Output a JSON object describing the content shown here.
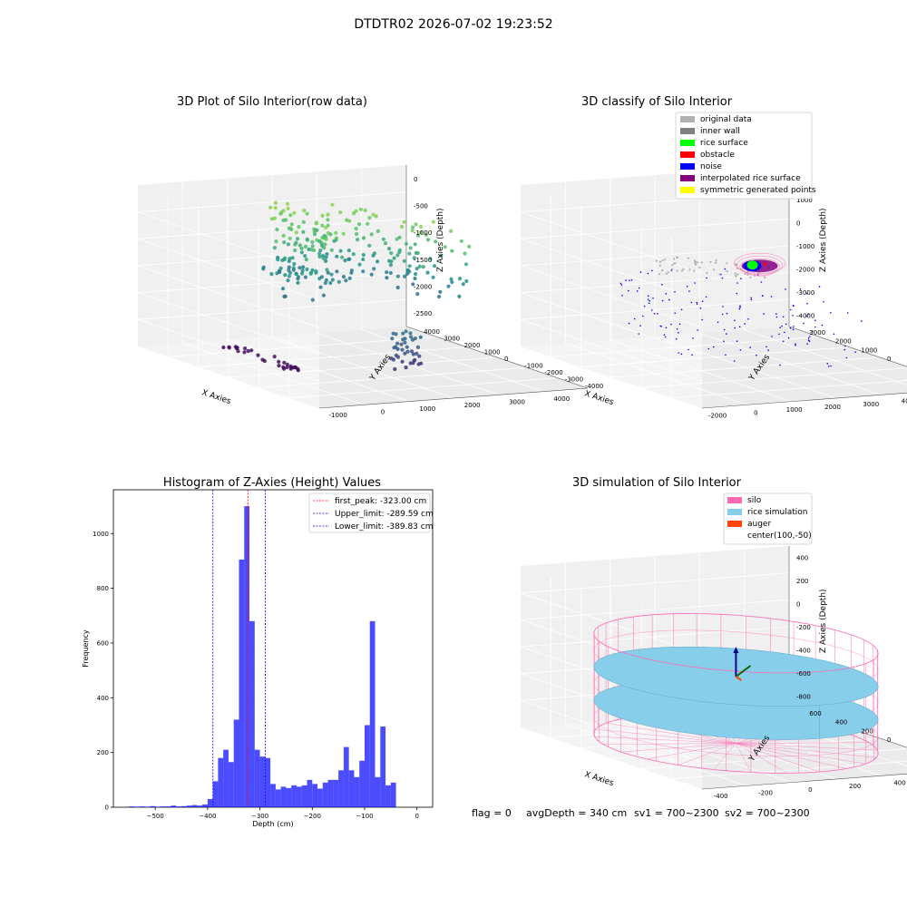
{
  "figure": {
    "suptitle": "DTDTR02 2026-07-02 19:23:52"
  },
  "footer": {
    "flag": "flag = 0",
    "avg_depth": "avgDepth = 340 cm",
    "sv1": "sv1 = 700~2300",
    "sv2": "sv2 = 700~2300"
  },
  "colors": {
    "original_data": "#b0b0b0",
    "inner_wall": "#808080",
    "rice_surface": "#00ff00",
    "obstacle": "#ff0000",
    "noise": "#0000ff",
    "interpolated_rice_surface": "#800080",
    "symmetric_generated_points": "#ffff00",
    "silo": "#ff69b4",
    "rice_simulation": "#87ceeb",
    "auger": "#ff4500",
    "hist_bars": "#0000ff",
    "first_peak_line": "#ff0000",
    "limit_lines": "#0000ff"
  },
  "chart_data": [
    {
      "type": "scatter",
      "title": "3D Plot of Silo Interior(row data)",
      "xlabel": "X Axies",
      "ylabel": "Y Axies",
      "zlabel": "Z Axies (Depth)",
      "x_ticks": [
        "-1000",
        "0",
        "1000",
        "2000",
        "3000",
        "4000"
      ],
      "y_ticks": [
        "-4000",
        "-3000",
        "-2000",
        "-1000",
        "0",
        "1000",
        "2000",
        "3000",
        "4000"
      ],
      "z_ticks": [
        "-2500",
        "-2000",
        "-1500",
        "-1000",
        "-500",
        "0"
      ],
      "xlim": [
        -1500,
        4500
      ],
      "ylim": [
        -4000,
        4500
      ],
      "zlim": [
        -2800,
        200
      ],
      "colormap": "viridis"
    },
    {
      "type": "scatter",
      "title": "3D classify of Silo Interior",
      "xlabel": "X Axies",
      "ylabel": "Y Axies",
      "zlabel": "Z Axies (Depth)",
      "x_ticks": [
        "-2000",
        "0",
        "1000",
        "2000",
        "3000",
        "4000",
        "5000"
      ],
      "y_ticks": [
        "-3000",
        "-2000",
        "-1000",
        "0",
        "1000",
        "2000",
        "3000"
      ],
      "z_ticks": [
        "-4000",
        "-3000",
        "-2000",
        "-1000",
        "0",
        "1000",
        "2000"
      ],
      "xlim": [
        -2500,
        5500
      ],
      "ylim": [
        -3500,
        3500
      ],
      "zlim": [
        -4700,
        2500
      ],
      "legend_position": "top-right",
      "legend": [
        "original data",
        "inner wall",
        "rice surface",
        "obstacle",
        "noise",
        "interpolated rice surface",
        "symmetric generated points"
      ]
    },
    {
      "type": "bar",
      "title": "Histogram of Z-Axies (Height) Values",
      "xlabel": "Depth (cm)",
      "ylabel": "Frequency",
      "xlim": [
        -580,
        30
      ],
      "ylim": [
        0,
        1160
      ],
      "x_ticks": [
        -500,
        -400,
        -300,
        -200,
        -100,
        0
      ],
      "y_ticks": [
        0,
        200,
        400,
        600,
        800,
        1000
      ],
      "bin_width": 10,
      "bins": [
        [
          -550,
          3
        ],
        [
          -540,
          2
        ],
        [
          -530,
          3
        ],
        [
          -520,
          2
        ],
        [
          -510,
          4
        ],
        [
          -500,
          2
        ],
        [
          -490,
          3
        ],
        [
          -480,
          3
        ],
        [
          -470,
          6
        ],
        [
          -460,
          3
        ],
        [
          -450,
          4
        ],
        [
          -440,
          6
        ],
        [
          -430,
          8
        ],
        [
          -420,
          6
        ],
        [
          -410,
          10
        ],
        [
          -400,
          30
        ],
        [
          -390,
          95
        ],
        [
          -380,
          180
        ],
        [
          -370,
          210
        ],
        [
          -360,
          165
        ],
        [
          -350,
          320
        ],
        [
          -340,
          905
        ],
        [
          -330,
          1100
        ],
        [
          -320,
          680
        ],
        [
          -310,
          210
        ],
        [
          -300,
          185
        ],
        [
          -290,
          180
        ],
        [
          -280,
          85
        ],
        [
          -270,
          65
        ],
        [
          -260,
          75
        ],
        [
          -250,
          70
        ],
        [
          -240,
          80
        ],
        [
          -230,
          75
        ],
        [
          -220,
          80
        ],
        [
          -210,
          100
        ],
        [
          -200,
          85
        ],
        [
          -190,
          68
        ],
        [
          -180,
          90
        ],
        [
          -170,
          100
        ],
        [
          -160,
          100
        ],
        [
          -150,
          135
        ],
        [
          -140,
          220
        ],
        [
          -130,
          135
        ],
        [
          -120,
          110
        ],
        [
          -110,
          170
        ],
        [
          -100,
          300
        ],
        [
          -90,
          680
        ],
        [
          -80,
          110
        ],
        [
          -70,
          295
        ],
        [
          -60,
          80
        ],
        [
          -50,
          90
        ]
      ],
      "vlines": [
        {
          "x": -323.0,
          "label": "first_peak: -323.00 cm",
          "style": "dashed",
          "color": "#ff0000"
        },
        {
          "x": -289.59,
          "label": "Upper_limit: -289.59 cm",
          "style": "dashed",
          "color": "#0000ff"
        },
        {
          "x": -389.83,
          "label": "Lower_limit: -389.83 cm",
          "style": "dashed",
          "color": "#0000ff"
        }
      ],
      "legend_position": "top-right"
    },
    {
      "type": "area",
      "title": "3D simulation of Silo Interior",
      "xlabel": "X Axies",
      "ylabel": "Y Axies",
      "zlabel": "Z Axies (Depth)",
      "x_ticks": [
        "-400",
        "-200",
        "0",
        "200",
        "400",
        "600"
      ],
      "y_ticks": [
        "-600",
        "-400",
        "-200",
        "0",
        "200",
        "400",
        "600"
      ],
      "z_ticks": [
        "-800",
        "-600",
        "-400",
        "-200",
        "0",
        "200",
        "400"
      ],
      "xlim": [
        -550,
        750
      ],
      "ylim": [
        -700,
        700
      ],
      "zlim": [
        -950,
        500
      ],
      "legend_position": "top-right",
      "legend": [
        "silo",
        "rice simulation",
        "auger",
        "center(100,-50)"
      ]
    }
  ]
}
